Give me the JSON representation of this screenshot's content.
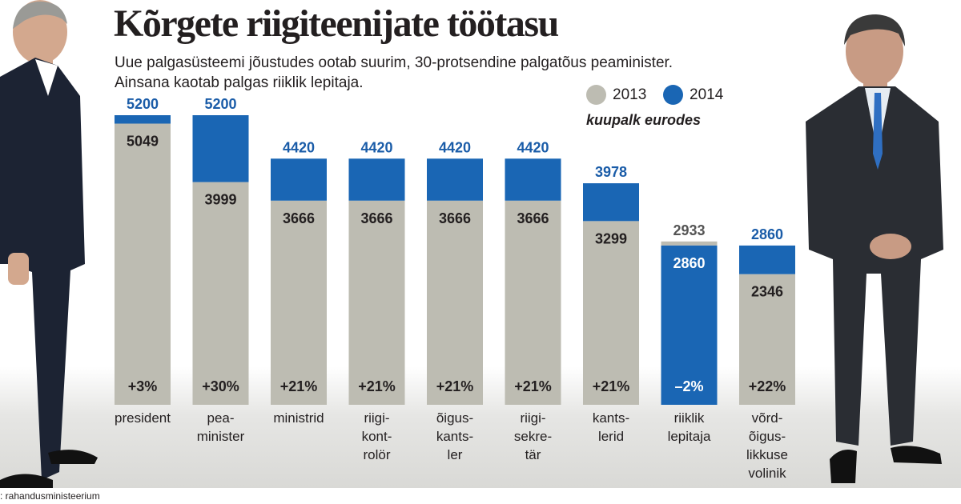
{
  "title": "Kõrgete riigiteenijate töötasu",
  "subtitle_line1": "Uue palgasüsteemi jõustudes ootab suurim, 30-protsendine palgatõus peaminister.",
  "subtitle_line2": "Ainsana kaotab palgas riiklik lepitaja.",
  "unit_note": "kuupalk eurodes",
  "source": ": rahandusministeerium",
  "colors": {
    "y2013": "#bdbcb2",
    "y2014": "#1a66b4",
    "text": "#231f20",
    "label2014": "#1a5ca8"
  },
  "chart_data": {
    "type": "bar",
    "title": "Kõrgete riigiteenijate töötasu",
    "legend": [
      "2013",
      "2014"
    ],
    "legend_position": "top-right",
    "ylim": [
      0,
      5200
    ],
    "categories": [
      [
        "president"
      ],
      [
        "pea-",
        "minister"
      ],
      [
        "ministrid"
      ],
      [
        "riigi-",
        "kont-",
        "rolör"
      ],
      [
        "õigus-",
        "kants-",
        "ler"
      ],
      [
        "riigi-",
        "sekre-",
        "tär"
      ],
      [
        "kants-",
        "lerid"
      ],
      [
        "riiklik",
        "lepitaja"
      ],
      [
        "võrd-",
        "õigus-",
        "likkuse",
        "volinik"
      ]
    ],
    "series": [
      {
        "name": "2013",
        "values": [
          5049,
          3999,
          3666,
          3666,
          3666,
          3666,
          3299,
          2933,
          2346
        ]
      },
      {
        "name": "2014",
        "values": [
          5200,
          5200,
          4420,
          4420,
          4420,
          4420,
          3978,
          2860,
          2860
        ]
      }
    ],
    "change_labels": [
      "+3%",
      "+30%",
      "+21%",
      "+21%",
      "+21%",
      "+21%",
      "+21%",
      "–2%",
      "+22%"
    ]
  }
}
